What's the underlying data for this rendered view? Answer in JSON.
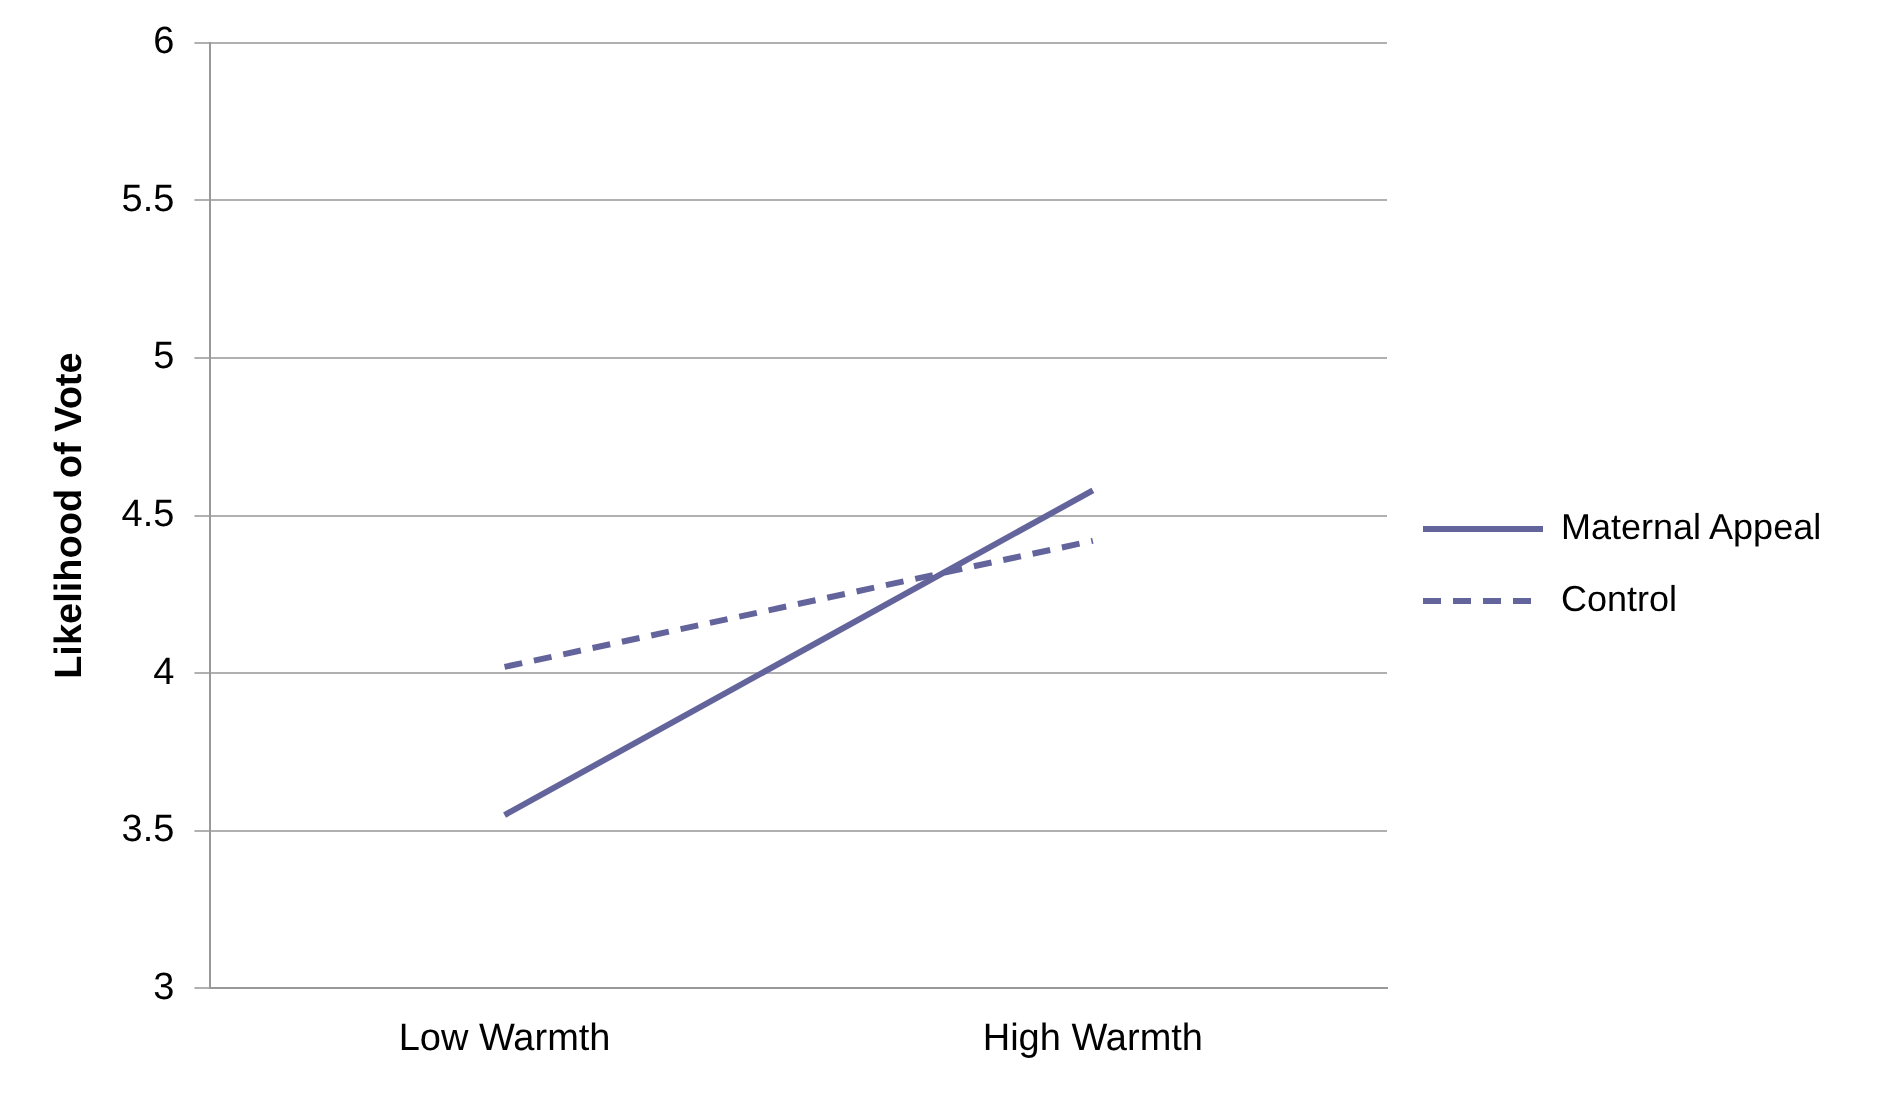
{
  "chart_data": {
    "type": "line",
    "ylabel": "Likelihood of Vote",
    "categories": [
      "Low Warmth",
      "High Warmth"
    ],
    "series": [
      {
        "name": "Maternal Appeal",
        "color": "#64649c",
        "values": [
          3.55,
          4.58
        ],
        "line_style": "solid"
      },
      {
        "name": "Control",
        "color": "#64649c",
        "values": [
          4.02,
          4.42
        ],
        "line_style": "dashed"
      }
    ],
    "ylim": [
      3,
      6
    ],
    "yticks": [
      3,
      3.5,
      4,
      4.5,
      5,
      5.5,
      6
    ],
    "grid": "y",
    "legend": "right",
    "marker": "none"
  }
}
